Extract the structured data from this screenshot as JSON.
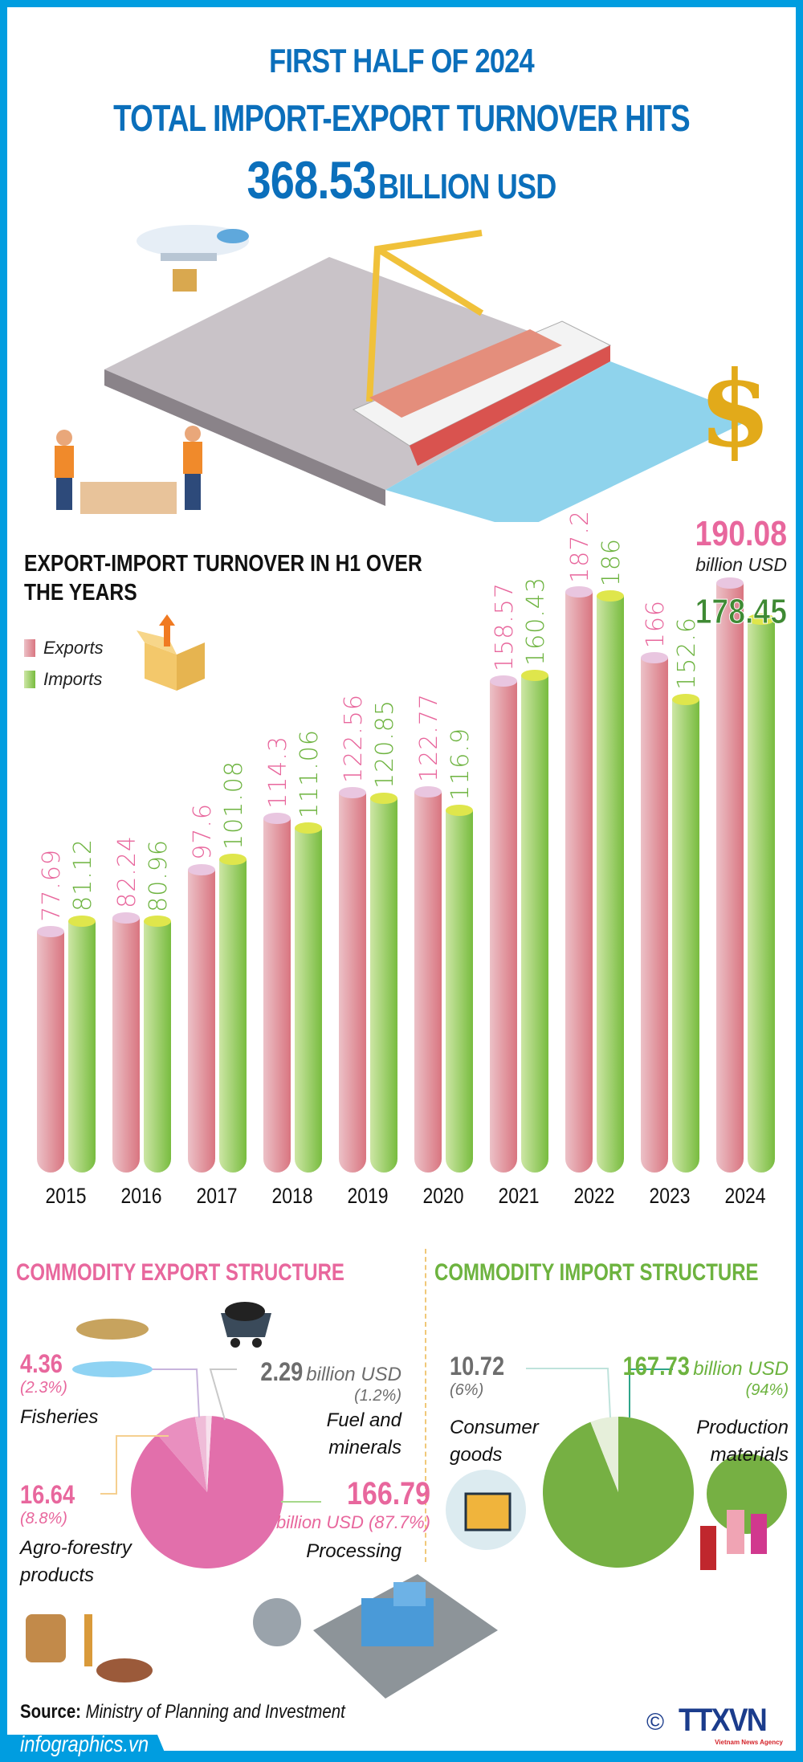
{
  "header": {
    "line1": "FIRST HALF OF 2024",
    "line2": "TOTAL IMPORT-EXPORT TURNOVER HITS",
    "total_value": "368.53",
    "total_unit": "BILLION USD"
  },
  "chart_data": {
    "type": "bar",
    "title": "EXPORT-IMPORT TURNOVER IN H1 OVER THE YEARS",
    "categories": [
      "2015",
      "2016",
      "2017",
      "2018",
      "2019",
      "2020",
      "2021",
      "2022",
      "2023",
      "2024"
    ],
    "series": [
      {
        "name": "Exports",
        "color": "#d97580",
        "values": [
          77.69,
          82.24,
          97.6,
          114.3,
          122.56,
          122.77,
          158.57,
          187.2,
          166,
          190.08
        ],
        "labels": [
          "77.69",
          "82.24",
          "97.6",
          "114.3",
          "122.56",
          "122.77",
          "158.57",
          "187.2",
          "166",
          ""
        ]
      },
      {
        "name": "Imports",
        "color": "#78bc3f",
        "values": [
          81.12,
          80.96,
          101.08,
          111.06,
          120.85,
          116.9,
          160.43,
          186,
          152.6,
          178.45
        ],
        "labels": [
          "81.12",
          "80.96",
          "101.08",
          "111.06",
          "120.85",
          "116.9",
          "160.43",
          "186",
          "152.6",
          ""
        ]
      }
    ],
    "annotation_2024": {
      "exports": "190.08",
      "unit": "billion USD",
      "imports": "178.45"
    },
    "legend": "left"
  },
  "export_structure": {
    "title": "COMMODITY EXPORT STRUCTURE",
    "slices": [
      {
        "label": "Fuel and minerals",
        "value": "2.29",
        "unit": "billion USD",
        "pct": "(1.2%)",
        "share": 1.2,
        "color": "#f7e1ed"
      },
      {
        "label": "Fisheries",
        "value": "4.36",
        "pct": "(2.3%)",
        "share": 2.3,
        "color": "#efbcd8"
      },
      {
        "label": "Agro-forestry products",
        "value": "16.64",
        "pct": "(8.8%)",
        "share": 8.8,
        "color": "#e98fbf"
      },
      {
        "label": "Processing",
        "value": "166.79",
        "unit_pct": "billion USD (87.7%)",
        "share": 87.7,
        "color": "#e26fab"
      }
    ]
  },
  "import_structure": {
    "title": "COMMODITY IMPORT STRUCTURE",
    "slices": [
      {
        "label": "Consumer goods",
        "value": "10.72",
        "pct": "(6%)",
        "share": 6,
        "color": "#e6efda"
      },
      {
        "label": "Production materials",
        "value": "167.73",
        "unit": "billion USD",
        "pct": "(94%)",
        "share": 94,
        "color": "#76b043"
      }
    ]
  },
  "footer": {
    "source_label": "Source:",
    "source_text": "Ministry of Planning and Investment",
    "site": "infographics.vn",
    "logo": "TTXVN",
    "logo_sub": "Vietnam News Agency",
    "copyright": "©"
  },
  "colors": {
    "border": "#009de0",
    "title": "#0b6fbb",
    "export": "#e8679d",
    "import": "#6db33f"
  }
}
